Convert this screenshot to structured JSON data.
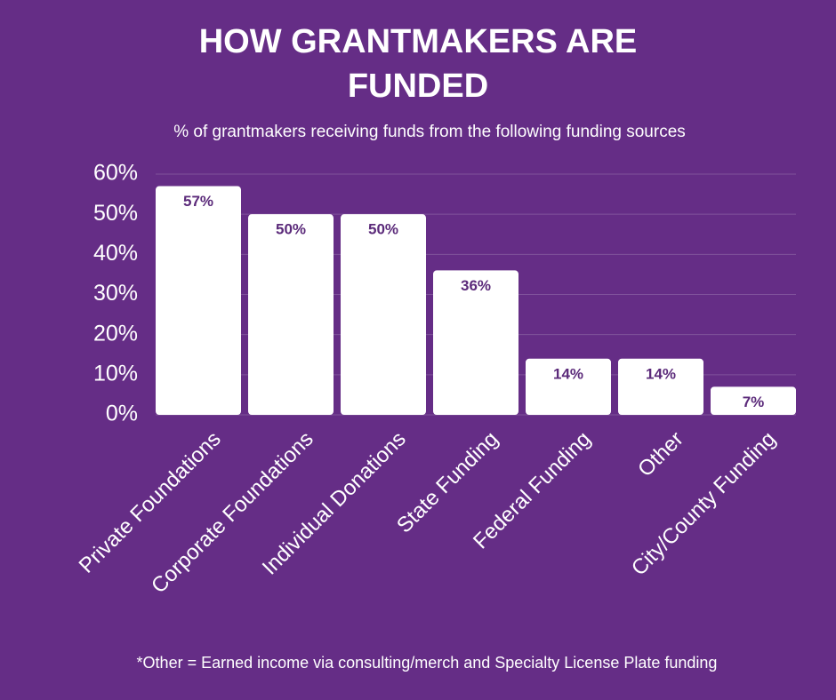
{
  "chart_data": {
    "type": "bar",
    "title": "HOW GRANTMAKERS ARE FUNDED",
    "subtitle": "% of grantmakers receiving funds from the following funding sources",
    "categories": [
      "Private Foundations",
      "Corporate Foundations",
      "Individual Donations",
      "State Funding",
      "Federal Funding",
      "Other",
      "City/County Funding"
    ],
    "values": [
      57,
      50,
      50,
      36,
      14,
      14,
      7
    ],
    "value_labels": [
      "57%",
      "50%",
      "50%",
      "36%",
      "14%",
      "14%",
      "7%"
    ],
    "color": "#ffffff",
    "ylim": [
      0,
      60
    ],
    "yticks": [
      {
        "value": 0,
        "label": "0%"
      },
      {
        "value": 10,
        "label": "10%"
      },
      {
        "value": 20,
        "label": "20%"
      },
      {
        "value": 30,
        "label": "30%"
      },
      {
        "value": 40,
        "label": "40%"
      },
      {
        "value": 50,
        "label": "50%"
      },
      {
        "value": 60,
        "label": "60%"
      }
    ],
    "grid": true,
    "note": "*Other = Earned income via consulting/merch and Specialty License Plate funding"
  }
}
